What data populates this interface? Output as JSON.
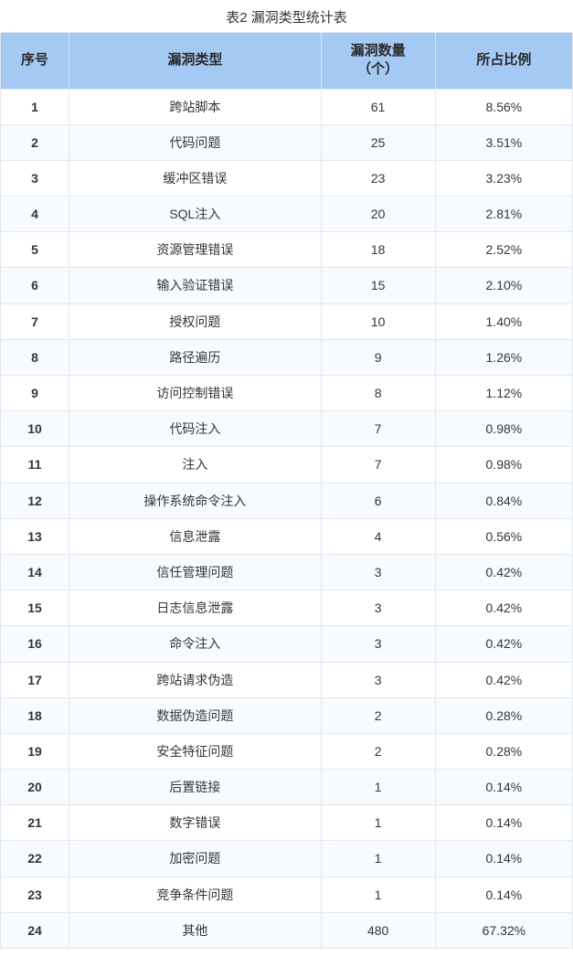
{
  "caption": "表2 漏洞类型统计表",
  "table": {
    "type": "table",
    "header_bg": "#a4c9f3",
    "row_bg_odd": "#ffffff",
    "row_bg_even": "#f7fbff",
    "border_color": "#e3e8ee",
    "text_color": "#353535",
    "header_text_color": "#2a2a2a",
    "header_fontsize": 15,
    "cell_fontsize": 14,
    "columns": [
      {
        "key": "idx",
        "label": "序号",
        "width_pct": 12,
        "align": "center",
        "bold": true
      },
      {
        "key": "type",
        "label": "漏洞类型",
        "width_pct": 44,
        "align": "center"
      },
      {
        "key": "count",
        "label": "漏洞数量\n（个）",
        "width_pct": 20,
        "align": "center"
      },
      {
        "key": "pct",
        "label": "所占比例",
        "width_pct": 24,
        "align": "center"
      }
    ],
    "rows": [
      {
        "idx": "1",
        "type": "跨站脚本",
        "count": "61",
        "pct": "8.56%"
      },
      {
        "idx": "2",
        "type": "代码问题",
        "count": "25",
        "pct": "3.51%"
      },
      {
        "idx": "3",
        "type": "缓冲区错误",
        "count": "23",
        "pct": "3.23%"
      },
      {
        "idx": "4",
        "type": "SQL注入",
        "count": "20",
        "pct": "2.81%"
      },
      {
        "idx": "5",
        "type": "资源管理错误",
        "count": "18",
        "pct": "2.52%"
      },
      {
        "idx": "6",
        "type": "输入验证错误",
        "count": "15",
        "pct": "2.10%"
      },
      {
        "idx": "7",
        "type": "授权问题",
        "count": "10",
        "pct": "1.40%"
      },
      {
        "idx": "8",
        "type": "路径遍历",
        "count": "9",
        "pct": "1.26%"
      },
      {
        "idx": "9",
        "type": "访问控制错误",
        "count": "8",
        "pct": "1.12%"
      },
      {
        "idx": "10",
        "type": "代码注入",
        "count": "7",
        "pct": "0.98%"
      },
      {
        "idx": "11",
        "type": "注入",
        "count": "7",
        "pct": "0.98%"
      },
      {
        "idx": "12",
        "type": "操作系统命令注入",
        "count": "6",
        "pct": "0.84%"
      },
      {
        "idx": "13",
        "type": "信息泄露",
        "count": "4",
        "pct": "0.56%"
      },
      {
        "idx": "14",
        "type": "信任管理问题",
        "count": "3",
        "pct": "0.42%"
      },
      {
        "idx": "15",
        "type": "日志信息泄露",
        "count": "3",
        "pct": "0.42%"
      },
      {
        "idx": "16",
        "type": "命令注入",
        "count": "3",
        "pct": "0.42%"
      },
      {
        "idx": "17",
        "type": "跨站请求伪造",
        "count": "3",
        "pct": "0.42%"
      },
      {
        "idx": "18",
        "type": "数据伪造问题",
        "count": "2",
        "pct": "0.28%"
      },
      {
        "idx": "19",
        "type": "安全特征问题",
        "count": "2",
        "pct": "0.28%"
      },
      {
        "idx": "20",
        "type": "后置链接",
        "count": "1",
        "pct": "0.14%"
      },
      {
        "idx": "21",
        "type": "数字错误",
        "count": "1",
        "pct": "0.14%"
      },
      {
        "idx": "22",
        "type": "加密问题",
        "count": "1",
        "pct": "0.14%"
      },
      {
        "idx": "23",
        "type": "竞争条件问题",
        "count": "1",
        "pct": "0.14%"
      },
      {
        "idx": "24",
        "type": "其他",
        "count": "480",
        "pct": "67.32%"
      }
    ]
  }
}
